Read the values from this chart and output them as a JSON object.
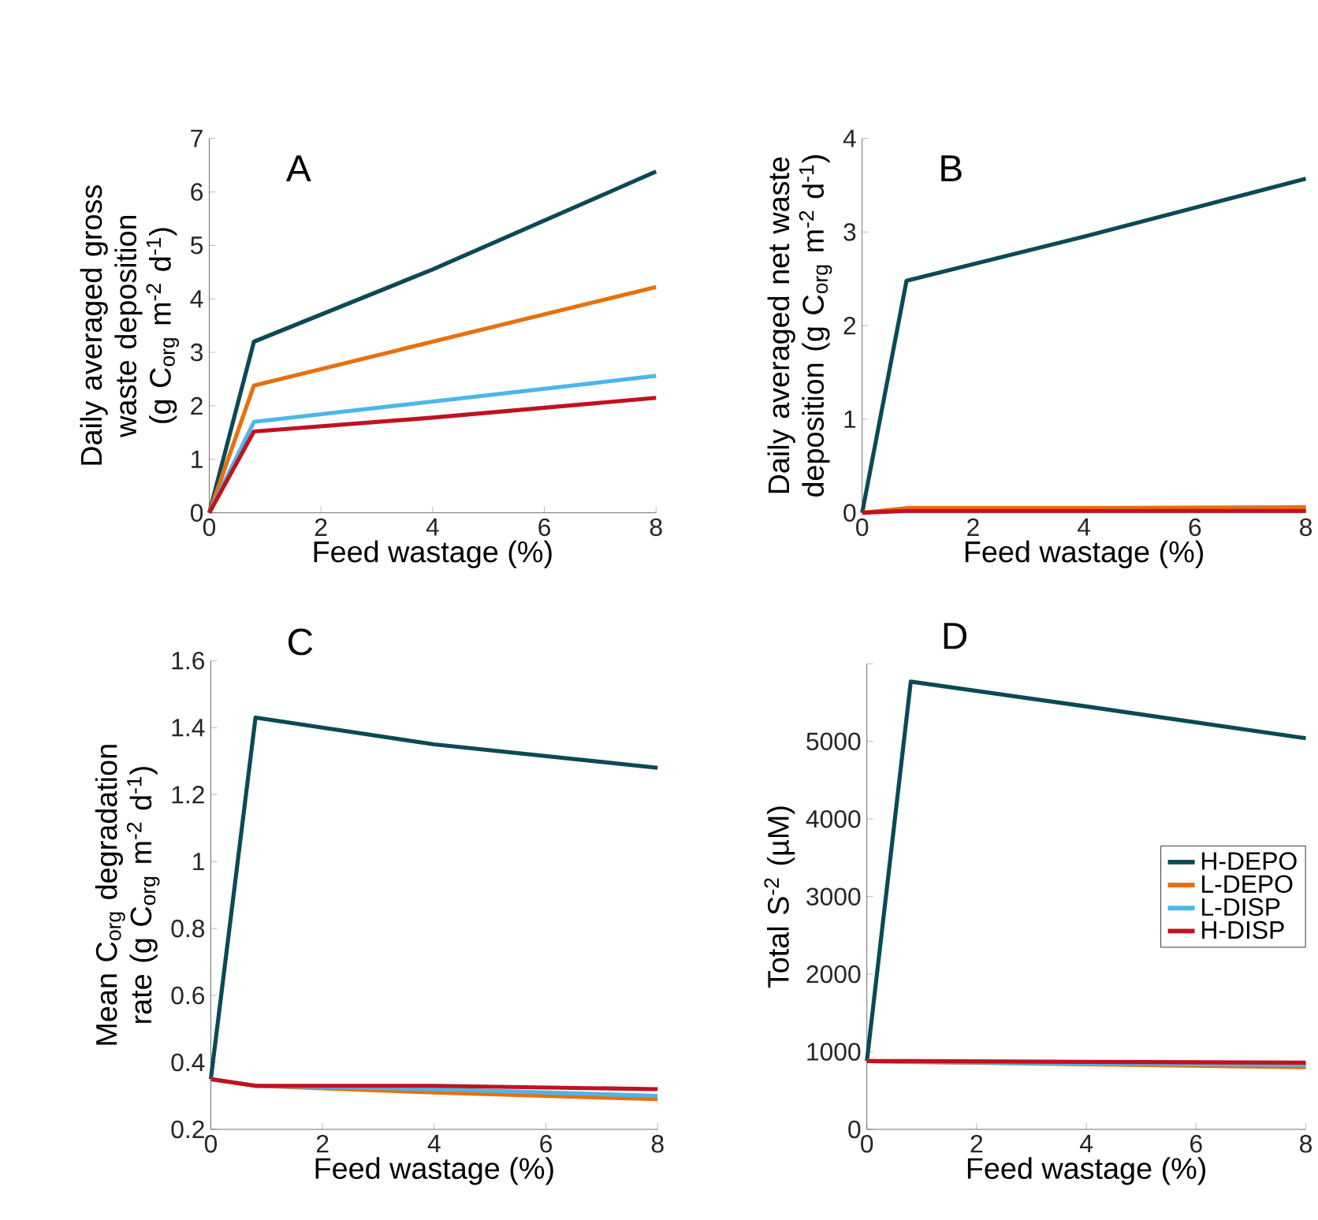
{
  "chart_data": [
    {
      "type": "line",
      "title": "A",
      "xlabel": "Feed wastage (%)",
      "ylabel": "Daily averaged gross waste deposition (g C$_{org}$ m$^{-2}$ d$^{-1}$)",
      "xlim": [
        0,
        8
      ],
      "ylim": [
        0,
        7
      ],
      "xticks": [
        0,
        2,
        4,
        6,
        8
      ],
      "yticks": [
        0,
        1,
        2,
        3,
        4,
        5,
        6,
        7
      ],
      "x": [
        0,
        0.8,
        4,
        8
      ],
      "series": [
        {
          "color": "#0b4a55",
          "values": [
            0,
            3.2,
            4.55,
            6.38
          ]
        },
        {
          "color": "#e8700f",
          "values": [
            0,
            2.38,
            3.2,
            4.22
          ]
        },
        {
          "color": "#4db6e8",
          "values": [
            0,
            1.7,
            2.08,
            2.56
          ]
        },
        {
          "color": "#c1121f",
          "values": [
            0,
            1.52,
            1.78,
            2.15
          ]
        }
      ]
    },
    {
      "type": "line",
      "title": "B",
      "xlabel": "Feed wastage (%)",
      "ylabel": "Daily averaged net waste deposition (g C$_{org}$ m$^{-2}$ d$^{-1}$)",
      "xlim": [
        0,
        8
      ],
      "ylim": [
        0,
        4
      ],
      "xticks": [
        0,
        2,
        4,
        6,
        8
      ],
      "yticks": [
        0,
        1,
        2,
        3,
        4
      ],
      "x": [
        0,
        0.8,
        4,
        8
      ],
      "series": [
        {
          "color": "#0b4a55",
          "values": [
            0,
            2.48,
            2.95,
            3.57
          ]
        },
        {
          "color": "#e8700f",
          "values": [
            0,
            0.05,
            0.05,
            0.06
          ]
        },
        {
          "color": "#c1121f",
          "values": [
            0,
            0.02,
            0.02,
            0.02
          ]
        }
      ]
    },
    {
      "type": "line",
      "title": "C",
      "xlabel": "Feed wastage (%)",
      "ylabel": "Mean C$_{org}$ degradation rate (g C$_{org}$ m$^{-2}$ d$^{-1}$)",
      "xlim": [
        0,
        8
      ],
      "ylim": [
        0.2,
        1.6
      ],
      "xticks": [
        0,
        2,
        4,
        6,
        8
      ],
      "yticks": [
        0.2,
        0.4,
        0.6,
        0.8,
        1,
        1.2,
        1.4,
        1.6
      ],
      "x": [
        0,
        0.8,
        4,
        8
      ],
      "series": [
        {
          "color": "#0b4a55",
          "values": [
            0.35,
            1.43,
            1.35,
            1.28
          ]
        },
        {
          "color": "#e8700f",
          "values": [
            0.35,
            0.33,
            0.31,
            0.29
          ]
        },
        {
          "color": "#4db6e8",
          "values": [
            0.35,
            0.33,
            0.32,
            0.3
          ]
        },
        {
          "color": "#c1121f",
          "values": [
            0.35,
            0.33,
            0.33,
            0.32
          ]
        }
      ]
    },
    {
      "type": "line",
      "title": "D",
      "xlabel": "Feed wastage (%)",
      "ylabel": "Total S$^{-2}$ (µM)",
      "xlim": [
        0,
        8
      ],
      "ylim": [
        0,
        6000
      ],
      "xticks": [
        0,
        2,
        4,
        6,
        8
      ],
      "yticks": [
        0,
        1000,
        2000,
        3000,
        4000,
        5000,
        {
          "value": 6000,
          "label": null
        }
      ],
      "legend": "right",
      "x": [
        0,
        0.8,
        4,
        8
      ],
      "series": [
        {
          "name": "H-DEPO",
          "color": "#0b4a55",
          "values": [
            880,
            5770,
            5450,
            5040
          ]
        },
        {
          "name": "L-DEPO",
          "color": "#e8700f",
          "values": [
            880,
            870,
            840,
            800
          ]
        },
        {
          "name": "L-DISP",
          "color": "#4db6e8",
          "values": [
            880,
            870,
            850,
            830
          ]
        },
        {
          "name": "H-DISP",
          "color": "#c1121f",
          "values": [
            880,
            880,
            870,
            860
          ]
        }
      ]
    }
  ]
}
